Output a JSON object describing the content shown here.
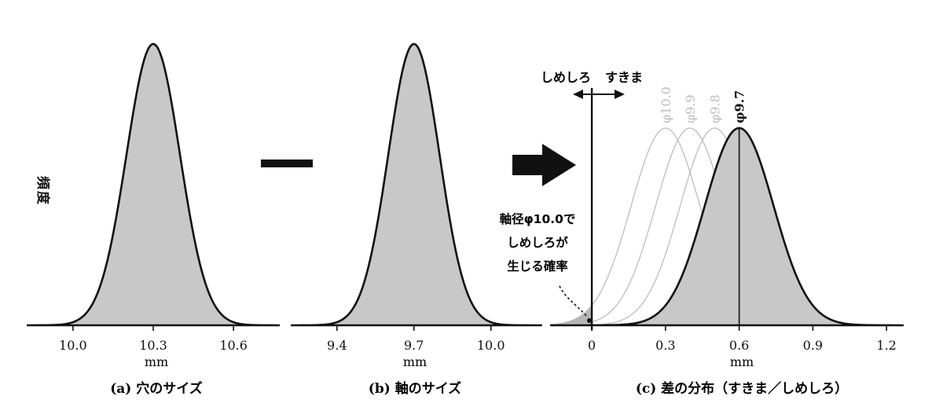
{
  "ylabel": "頻度",
  "colors": {
    "fill": "#c8c8c8",
    "stroke": "#111111",
    "faded": "#bdbdbd",
    "background": "#ffffff"
  },
  "operators": {
    "minus": "minus-bar",
    "arrow": "right-arrow"
  },
  "chart_data": [
    {
      "type": "area",
      "title": "(a) 穴のサイズ",
      "xlabel": "mm",
      "xlim": [
        9.83,
        10.77
      ],
      "ticks": [
        10.0,
        10.3,
        10.6
      ],
      "tick_labels": [
        "10.0",
        "10.3",
        "10.6"
      ],
      "grid": false,
      "series": [
        {
          "mean": 10.3,
          "sd": 0.1,
          "filled": true
        }
      ]
    },
    {
      "type": "area",
      "title": "(b) 軸のサイズ",
      "xlabel": "mm",
      "xlim": [
        9.22,
        10.2
      ],
      "ticks": [
        9.4,
        9.7,
        10.0
      ],
      "tick_labels": [
        "9.4",
        "9.7",
        "10.0"
      ],
      "grid": false,
      "series": [
        {
          "mean": 9.7,
          "sd": 0.1,
          "filled": true
        }
      ]
    },
    {
      "type": "area",
      "title": "(c) 差の分布（すきま／しめしろ）",
      "xlabel": "mm",
      "xlim": [
        -0.17,
        1.27
      ],
      "ticks": [
        0,
        0.3,
        0.6,
        0.9,
        1.2
      ],
      "tick_labels": [
        "0",
        "0.3",
        "0.6",
        "0.9",
        "1.2"
      ],
      "grid": false,
      "series": [
        {
          "name": "φ10.0",
          "mean": 0.3,
          "sd": 0.14,
          "faded": true
        },
        {
          "name": "φ9.9",
          "mean": 0.4,
          "sd": 0.14,
          "faded": true
        },
        {
          "name": "φ9.8",
          "mean": 0.5,
          "sd": 0.14,
          "faded": true
        },
        {
          "name": "φ9.7",
          "mean": 0.6,
          "sd": 0.14,
          "faded": false,
          "filled": true
        }
      ],
      "zero_line_labels": {
        "left": "しめしろ",
        "right": "すきま"
      },
      "annotation": [
        "軸径φ10.0で",
        "しめしろが",
        "生じる確率"
      ]
    }
  ]
}
